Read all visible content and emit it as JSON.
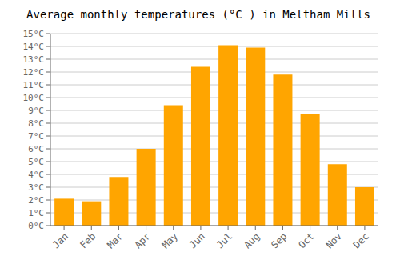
{
  "chart_data": {
    "type": "bar",
    "title": "Average monthly temperatures (°C ) in Meltham Mills",
    "categories": [
      "Jan",
      "Feb",
      "Mar",
      "Apr",
      "May",
      "Jun",
      "Jul",
      "Aug",
      "Sep",
      "Oct",
      "Nov",
      "Dec"
    ],
    "values": [
      2.1,
      1.9,
      3.8,
      6.0,
      9.4,
      12.4,
      14.1,
      13.9,
      11.8,
      8.7,
      4.8,
      3.0
    ],
    "color": "#FFA500",
    "ylim": [
      0,
      15
    ],
    "yticks": [
      {
        "value": 0,
        "label": "0°C"
      },
      {
        "value": 1,
        "label": "1°C"
      },
      {
        "value": 2,
        "label": "2°C"
      },
      {
        "value": 3,
        "label": "3°C"
      },
      {
        "value": 4,
        "label": "4°C"
      },
      {
        "value": 5,
        "label": "5°C"
      },
      {
        "value": 6,
        "label": "6°C"
      },
      {
        "value": 7,
        "label": "7°C"
      },
      {
        "value": 8,
        "label": "8°C"
      },
      {
        "value": 9,
        "label": "9°C"
      },
      {
        "value": 10,
        "label": "10°C"
      },
      {
        "value": 11,
        "label": "11°C"
      },
      {
        "value": 12,
        "label": "12°C"
      },
      {
        "value": 13,
        "label": "13°C"
      },
      {
        "value": 14,
        "label": "14°C"
      },
      {
        "value": 15,
        "label": "15°C"
      }
    ],
    "grid": true
  }
}
